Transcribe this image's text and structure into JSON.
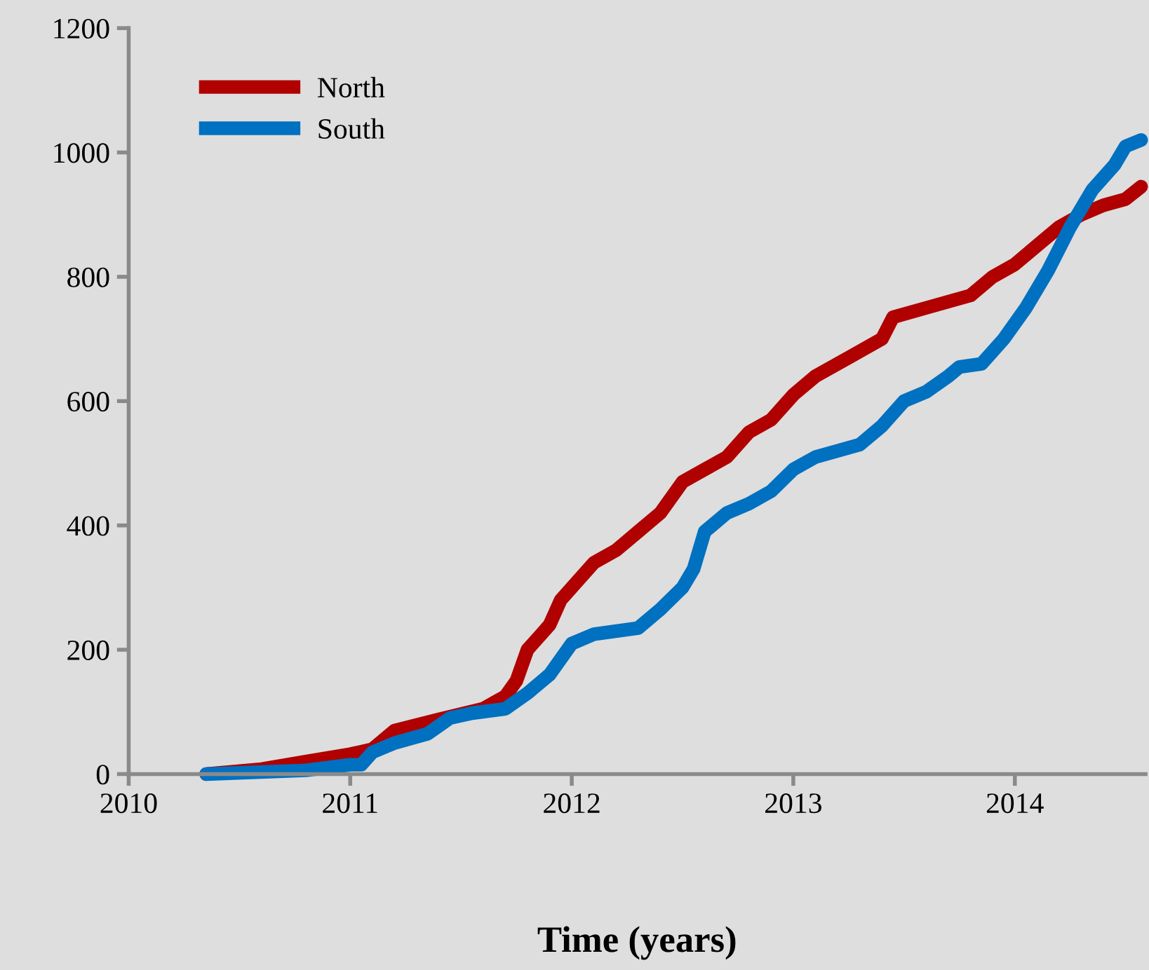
{
  "chart_data": {
    "type": "line",
    "xlabel": "Time (years)",
    "xlim": [
      2010,
      2014.59
    ],
    "xticks": [
      2010,
      2011,
      2012,
      2013,
      2014
    ],
    "ylim": [
      0,
      1200
    ],
    "yticks": [
      0,
      200,
      400,
      600,
      800,
      1000,
      1200
    ],
    "grid": false,
    "legend": "top left",
    "marker": "none",
    "line_style": "solid",
    "series": [
      {
        "name": "North",
        "color": "#b00000",
        "x": [
          2010.35,
          2010.6,
          2010.8,
          2011.0,
          2011.1,
          2011.2,
          2011.4,
          2011.6,
          2011.7,
          2011.75,
          2011.8,
          2011.9,
          2011.95,
          2012.0,
          2012.1,
          2012.2,
          2012.3,
          2012.4,
          2012.5,
          2012.6,
          2012.7,
          2012.8,
          2012.9,
          2013.0,
          2013.1,
          2013.25,
          2013.4,
          2013.45,
          2013.6,
          2013.8,
          2013.9,
          2014.0,
          2014.1,
          2014.2,
          2014.3,
          2014.4,
          2014.5,
          2014.57
        ],
        "values": [
          0,
          8,
          20,
          32,
          40,
          70,
          88,
          105,
          125,
          150,
          200,
          240,
          280,
          300,
          340,
          360,
          390,
          420,
          470,
          490,
          510,
          550,
          570,
          610,
          640,
          670,
          700,
          735,
          750,
          770,
          800,
          820,
          850,
          880,
          900,
          915,
          925,
          945
        ]
      },
      {
        "name": "South",
        "color": "#0070c0",
        "x": [
          2010.35,
          2010.8,
          2011.0,
          2011.05,
          2011.1,
          2011.2,
          2011.35,
          2011.45,
          2011.55,
          2011.7,
          2011.8,
          2011.9,
          2012.0,
          2012.1,
          2012.3,
          2012.4,
          2012.5,
          2012.55,
          2012.6,
          2012.7,
          2012.8,
          2012.9,
          2013.0,
          2013.1,
          2013.3,
          2013.4,
          2013.5,
          2013.6,
          2013.7,
          2013.75,
          2013.85,
          2013.95,
          2014.05,
          2014.15,
          2014.25,
          2014.35,
          2014.45,
          2014.5,
          2014.57
        ],
        "values": [
          0,
          6,
          15,
          15,
          35,
          50,
          65,
          90,
          98,
          105,
          130,
          160,
          210,
          225,
          235,
          265,
          300,
          330,
          390,
          420,
          435,
          455,
          490,
          510,
          530,
          560,
          600,
          615,
          640,
          655,
          660,
          700,
          750,
          810,
          880,
          940,
          980,
          1010,
          1020
        ]
      }
    ]
  }
}
